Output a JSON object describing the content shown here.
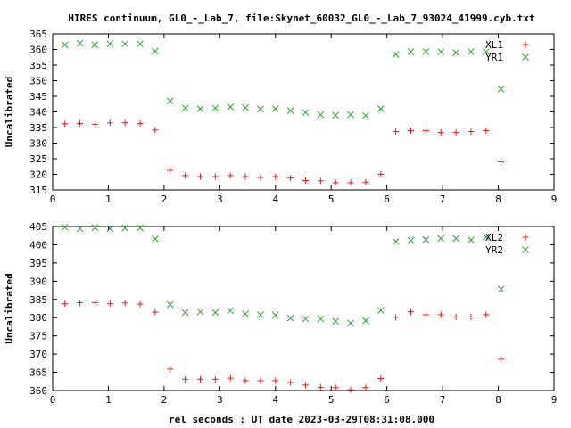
{
  "title": "HIRES continuum, GL0_-_Lab_7, file:Skynet_60032_GL0_-_Lab_7_93024_41999.cyb.txt",
  "xlabel": "rel seconds : UT date 2023-03-29T08:31:08.000",
  "colors": {
    "L": "#e41a1c",
    "R": "#2ca02c"
  },
  "chart_data": [
    {
      "type": "scatter",
      "ylabel": "Uncalibrated",
      "xlim": [
        0,
        9
      ],
      "ylim": [
        315,
        365
      ],
      "xticks": [
        0,
        1,
        2,
        3,
        4,
        5,
        6,
        7,
        8,
        9
      ],
      "yticks": [
        315,
        320,
        325,
        330,
        335,
        340,
        345,
        350,
        355,
        360,
        365
      ],
      "legend": "top-right",
      "series": [
        {
          "name": "XL1",
          "marker": "plus",
          "color": "#e41a1c",
          "x": [
            0.22,
            0.49,
            0.76,
            1.03,
            1.3,
            1.57,
            1.84,
            2.11,
            2.38,
            2.65,
            2.92,
            3.19,
            3.46,
            3.73,
            4.0,
            4.27,
            4.54,
            4.81,
            5.08,
            5.35,
            5.62,
            5.89,
            6.16,
            6.43,
            6.7,
            6.97,
            7.24,
            7.51,
            7.78,
            8.05
          ],
          "y": [
            336.2,
            336.3,
            336.0,
            336.5,
            336.5,
            336.3,
            334.2,
            321.3,
            319.6,
            319.3,
            319.3,
            319.6,
            319.3,
            319.0,
            319.3,
            318.8,
            318.0,
            317.9,
            317.3,
            317.3,
            317.5,
            320.0,
            333.7,
            334.0,
            334.0,
            333.4,
            333.4,
            333.7,
            334.0,
            324.0
          ]
        },
        {
          "name": "YR1",
          "marker": "cross",
          "color": "#2ca02c",
          "x": [
            0.22,
            0.49,
            0.76,
            1.03,
            1.3,
            1.57,
            1.84,
            2.11,
            2.38,
            2.65,
            2.92,
            3.19,
            3.46,
            3.73,
            4.0,
            4.27,
            4.54,
            4.81,
            5.08,
            5.35,
            5.62,
            5.89,
            6.16,
            6.43,
            6.7,
            6.97,
            7.24,
            7.51,
            7.78,
            8.05
          ],
          "y": [
            361.5,
            362.0,
            361.5,
            361.8,
            361.8,
            361.8,
            359.5,
            343.5,
            341.2,
            341.0,
            341.2,
            341.6,
            341.4,
            340.9,
            341.0,
            340.4,
            339.8,
            339.1,
            338.9,
            339.1,
            338.8,
            341.0,
            358.4,
            359.3,
            359.3,
            359.3,
            359.0,
            359.3,
            359.3,
            347.3
          ]
        }
      ]
    },
    {
      "type": "scatter",
      "ylabel": "Uncalibrated",
      "xlim": [
        0,
        9
      ],
      "ylim": [
        360,
        405
      ],
      "xticks": [
        0,
        1,
        2,
        3,
        4,
        5,
        6,
        7,
        8,
        9
      ],
      "yticks": [
        360,
        365,
        370,
        375,
        380,
        385,
        390,
        395,
        400,
        405
      ],
      "legend": "top-right",
      "series": [
        {
          "name": "XL2",
          "marker": "plus",
          "color": "#e41a1c",
          "x": [
            0.22,
            0.49,
            0.76,
            1.03,
            1.3,
            1.57,
            1.84,
            2.11,
            2.38,
            2.65,
            2.92,
            3.19,
            3.46,
            3.73,
            4.0,
            4.27,
            4.54,
            4.81,
            5.08,
            5.35,
            5.62,
            5.89,
            6.16,
            6.43,
            6.7,
            6.97,
            7.24,
            7.51,
            7.78,
            8.05
          ],
          "y": [
            383.8,
            384.1,
            384.1,
            383.8,
            384.0,
            383.7,
            381.5,
            365.9,
            363.1,
            363.1,
            363.1,
            363.4,
            362.7,
            362.7,
            362.7,
            362.2,
            361.5,
            360.9,
            360.8,
            360.2,
            360.8,
            363.3,
            380.1,
            381.6,
            380.8,
            380.8,
            380.2,
            380.2,
            380.8,
            368.6
          ]
        },
        {
          "name": "YR2",
          "marker": "cross",
          "color": "#2ca02c",
          "x": [
            0.22,
            0.49,
            0.76,
            1.03,
            1.3,
            1.57,
            1.84,
            2.11,
            2.38,
            2.65,
            2.92,
            3.19,
            3.46,
            3.73,
            4.0,
            4.27,
            4.54,
            4.81,
            5.08,
            5.35,
            5.62,
            5.89,
            6.16,
            6.43,
            6.7,
            6.97,
            7.24,
            7.51,
            7.78,
            8.05
          ],
          "y": [
            404.8,
            404.4,
            404.7,
            404.4,
            404.6,
            404.6,
            401.6,
            383.6,
            381.4,
            381.6,
            381.4,
            381.9,
            381.0,
            380.8,
            380.7,
            379.9,
            379.7,
            379.7,
            379.0,
            378.5,
            379.2,
            382.0,
            400.9,
            401.2,
            401.4,
            401.7,
            401.7,
            401.3,
            402.1,
            387.8
          ]
        }
      ]
    }
  ]
}
